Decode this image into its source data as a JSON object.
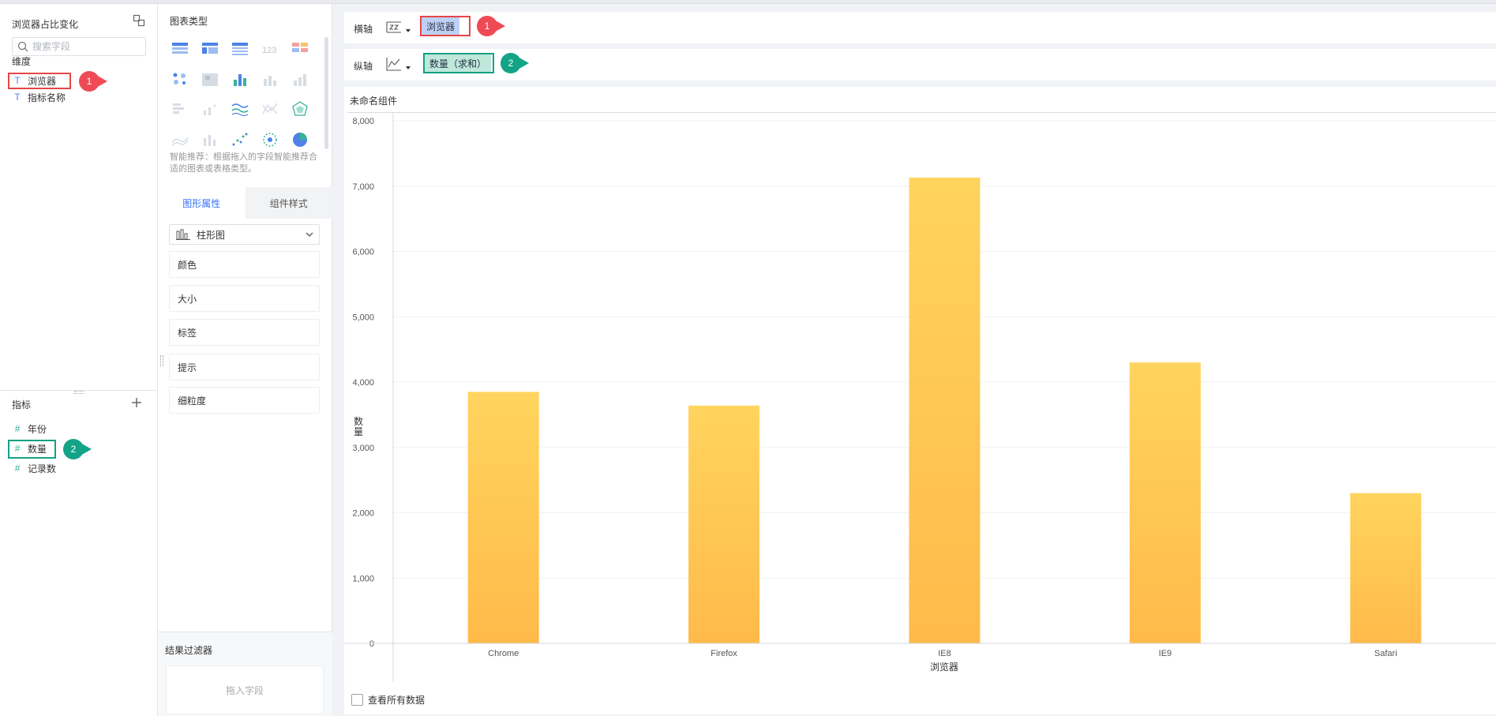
{
  "data_panel": {
    "title": "浏览器占比变化",
    "search_placeholder": "搜索字段",
    "dimension_header": "维度",
    "dimensions": [
      {
        "type": "T",
        "label": "浏览器"
      },
      {
        "type": "T",
        "label": "指标名称"
      }
    ],
    "measure_header": "指标",
    "measures": [
      {
        "type": "#",
        "label": "年份"
      },
      {
        "type": "#",
        "label": "数量"
      },
      {
        "type": "#",
        "label": "记录数"
      }
    ],
    "callout_1": "1",
    "callout_2": "2"
  },
  "type_panel": {
    "title": "图表类型",
    "hint": "智能推荐：根据拖入的字段智能推荐合适的图表或表格类型。",
    "tabs": [
      "图形属性",
      "组件样式"
    ],
    "chart_type_selected": "柱形图",
    "properties": [
      "颜色",
      "大小",
      "标签",
      "提示",
      "细粒度"
    ],
    "result_filter_title": "结果过滤器",
    "drop_hint": "拖入字段"
  },
  "axes": {
    "x_label": "横轴",
    "x_field": "浏览器",
    "y_label": "纵轴",
    "y_field": "数量（求和）",
    "callout_1": "1",
    "callout_2": "2"
  },
  "widget": {
    "title": "未命名组件",
    "view_all": "查看所有数据"
  },
  "colors": {
    "bar_top": "#ffd45e",
    "bar_bottom": "#ffba4a",
    "accent": "#3370ff",
    "highlight_red": "#e84545",
    "highlight_green": "#14a085"
  },
  "chart_data": {
    "type": "bar",
    "categories": [
      "Chrome",
      "Firefox",
      "IE8",
      "IE9",
      "Safari"
    ],
    "values": [
      3850,
      3640,
      7130,
      4300,
      2300
    ],
    "xlabel": "浏览器",
    "ylabel": "数量",
    "ylim": [
      0,
      8000
    ],
    "yticks": [
      "0",
      "1,000",
      "2,000",
      "3,000",
      "4,000",
      "5,000",
      "6,000",
      "7,000",
      "8,000"
    ],
    "grid": true
  }
}
